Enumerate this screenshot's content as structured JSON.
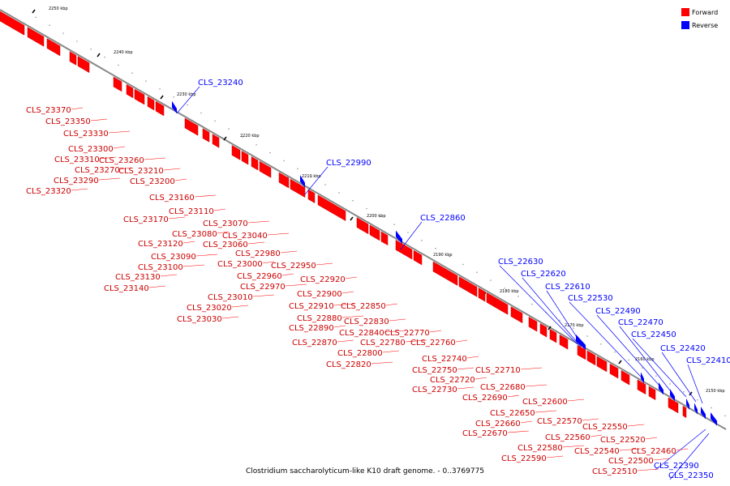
{
  "legend": {
    "forward": {
      "label": "Forward",
      "color": "#ff0000"
    },
    "reverse": {
      "label": "Reverse",
      "color": "#0000ff"
    }
  },
  "caption": "Clostridium saccharolyticum-like K10 draft genome. - 0..3769775",
  "ticks": [
    "2250 kbp",
    "2240 kbp",
    "2230 kbp",
    "2220 kbp",
    "2210 kbp",
    "2200 kbp",
    "2190 kbp",
    "2180 kbp",
    "2170 kbp",
    "2160 kbp",
    "2150 kbp"
  ],
  "labels_reverse": [
    "CLS_23240",
    "CLS_22990",
    "CLS_22860",
    "CLS_22630",
    "CLS_22620",
    "CLS_22610",
    "CLS_22530",
    "CLS_22490",
    "CLS_22470",
    "CLS_22450",
    "CLS_22420",
    "CLS_22410",
    "CLS_22390",
    "CLS_22350"
  ],
  "labels_forward": [
    "CLS_23370",
    "CLS_23350",
    "CLS_23330",
    "CLS_23300",
    "CLS_23310",
    "CLS_23260",
    "CLS_23270",
    "CLS_23210",
    "CLS_23290",
    "CLS_23200",
    "CLS_23320",
    "CLS_23160",
    "CLS_23110",
    "CLS_23170",
    "CLS_23070",
    "CLS_23080",
    "CLS_23060",
    "CLS_23040",
    "CLS_23120",
    "CLS_22980",
    "CLS_23090",
    "CLS_23000",
    "CLS_22950",
    "CLS_23100",
    "CLS_22960",
    "CLS_23130",
    "CLS_22970",
    "CLS_22920",
    "CLS_23140",
    "CLS_23010",
    "CLS_22900",
    "CLS_23020",
    "CLS_22910",
    "CLS_22850",
    "CLS_23030",
    "CLS_22880",
    "CLS_22890",
    "CLS_22830",
    "CLS_22840",
    "CLS_22770",
    "CLS_22870",
    "CLS_22780",
    "CLS_22760",
    "CLS_22800",
    "CLS_22820",
    "CLS_22740",
    "CLS_22750",
    "CLS_22710",
    "CLS_22720",
    "CLS_22730",
    "CLS_22680",
    "CLS_22690",
    "CLS_22600",
    "CLS_22650",
    "CLS_22660",
    "CLS_22570",
    "CLS_22670",
    "CLS_22560",
    "CLS_22550",
    "CLS_22580",
    "CLS_22520",
    "CLS_22590",
    "CLS_22540",
    "CLS_22460",
    "CLS_22500",
    "CLS_22510"
  ]
}
